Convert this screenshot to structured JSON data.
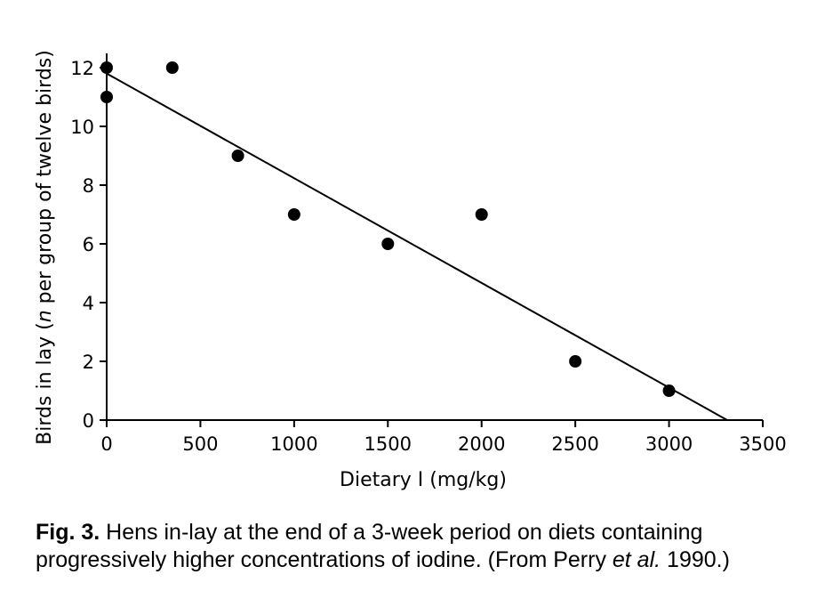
{
  "chart_data": {
    "type": "scatter",
    "xlabel": "Dietary I (mg/kg)",
    "ylabel_prefix": "Birds in lay (",
    "ylabel_italic": "n",
    "ylabel_suffix": " per group of twelve birds)",
    "xlim": [
      0,
      3500
    ],
    "ylim": [
      0,
      12
    ],
    "x_ticks": [
      0,
      500,
      1000,
      1500,
      2000,
      2500,
      3000,
      3500
    ],
    "y_ticks": [
      0,
      2,
      4,
      6,
      8,
      10,
      12
    ],
    "grid": false,
    "points": [
      {
        "x": 0,
        "y": 12
      },
      {
        "x": 0,
        "y": 11
      },
      {
        "x": 350,
        "y": 12
      },
      {
        "x": 700,
        "y": 9
      },
      {
        "x": 1000,
        "y": 7
      },
      {
        "x": 1500,
        "y": 6
      },
      {
        "x": 2000,
        "y": 7
      },
      {
        "x": 2500,
        "y": 2
      },
      {
        "x": 3000,
        "y": 1
      }
    ],
    "regression_line": {
      "x": [
        0,
        3310
      ],
      "y": [
        11.8,
        0
      ]
    }
  },
  "caption": {
    "label": "Fig. 3.",
    "text_before_italic": " Hens in-lay at the end of a 3-week period on diets containing progressively higher concentrations of iodine. (From Perry ",
    "italic": "et al.",
    "text_after_italic": " 1990.)"
  }
}
